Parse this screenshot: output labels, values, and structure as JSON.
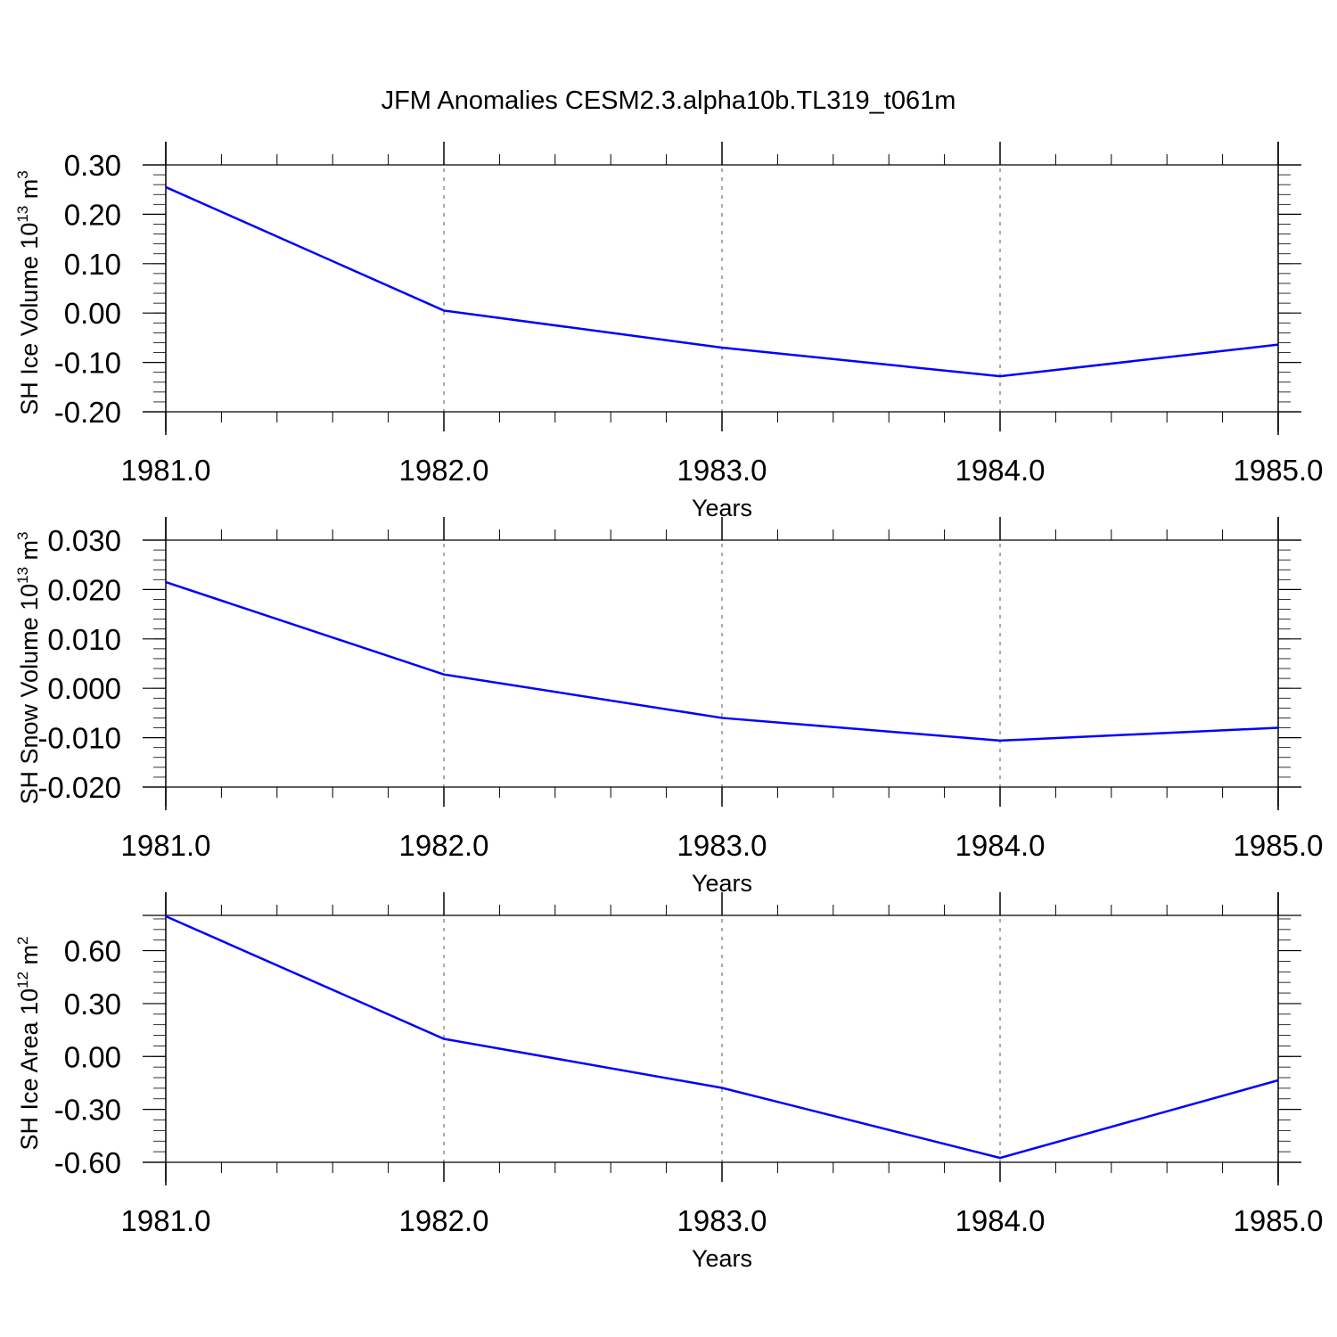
{
  "title": "JFM Anomalies CESM2.3.alpha10b.TL319_t061m",
  "chart_data": [
    {
      "type": "line",
      "ylabel_text": "SH Ice Volume 10",
      "ylabel_exp": "13",
      "ylabel_unit": " m",
      "ylabel_unit_exp": "3",
      "xlabel": "Years",
      "x": [
        1981,
        1982,
        1983,
        1984,
        1985
      ],
      "x_tick_labels": [
        "1981.0",
        "1982.0",
        "1983.0",
        "1984.0",
        "1985.0"
      ],
      "y_tick_labels": [
        "0.30",
        "0.20",
        "0.10",
        "0.00",
        "-0.10",
        "-0.20"
      ],
      "y_ticks": [
        0.3,
        0.2,
        0.1,
        0.0,
        -0.1,
        -0.2
      ],
      "y_minor_step": 0.02,
      "ylim": [
        -0.2,
        0.3
      ],
      "grid": "x-dashed",
      "line_color": "#0000ff",
      "series": [
        {
          "values": [
            0.255,
            0.005,
            -0.07,
            -0.128,
            -0.064
          ]
        }
      ]
    },
    {
      "type": "line",
      "ylabel_text": "SH Snow Volume 10",
      "ylabel_exp": "13",
      "ylabel_unit": " m",
      "ylabel_unit_exp": "3",
      "xlabel": "Years",
      "x": [
        1981,
        1982,
        1983,
        1984,
        1985
      ],
      "x_tick_labels": [
        "1981.0",
        "1982.0",
        "1983.0",
        "1984.0",
        "1985.0"
      ],
      "y_tick_labels": [
        "0.030",
        "0.020",
        "0.010",
        "0.000",
        "-0.010",
        "-0.020"
      ],
      "y_ticks": [
        0.03,
        0.02,
        0.01,
        0.0,
        -0.01,
        -0.02
      ],
      "y_minor_step": 0.002,
      "ylim": [
        -0.02,
        0.03
      ],
      "grid": "x-dashed",
      "line_color": "#0000ff",
      "series": [
        {
          "values": [
            0.0215,
            0.0028,
            -0.006,
            -0.0106,
            -0.008
          ]
        }
      ]
    },
    {
      "type": "line",
      "ylabel_text": "SH Ice Area 10",
      "ylabel_exp": "12",
      "ylabel_unit": " m",
      "ylabel_unit_exp": "2",
      "xlabel": "Years",
      "x": [
        1981,
        1982,
        1983,
        1984,
        1985
      ],
      "x_tick_labels": [
        "1981.0",
        "1982.0",
        "1983.0",
        "1984.0",
        "1985.0"
      ],
      "y_tick_labels": [
        "0.60",
        "0.30",
        "0.00",
        "-0.30",
        "-0.60"
      ],
      "y_ticks": [
        0.6,
        0.3,
        0.0,
        -0.3,
        -0.6
      ],
      "y_minor_step": 0.06,
      "ylim": [
        -0.6,
        0.8
      ],
      "grid": "x-dashed",
      "line_color": "#0000ff",
      "series": [
        {
          "values": [
            0.795,
            0.1,
            -0.178,
            -0.575,
            -0.135
          ]
        }
      ]
    }
  ]
}
